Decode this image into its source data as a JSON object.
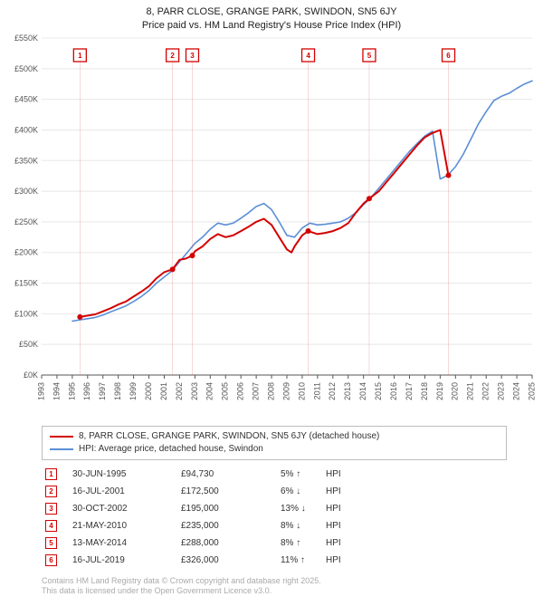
{
  "title": {
    "line1": "8, PARR CLOSE, GRANGE PARK, SWINDON, SN5 6JY",
    "line2": "Price paid vs. HM Land Registry's House Price Index (HPI)"
  },
  "chart": {
    "type": "line",
    "background_color": "#ffffff",
    "grid_color": "#e8e8e8",
    "axis_color": "#555555",
    "axis_font_size": 9,
    "x": {
      "min": 1993,
      "max": 2025,
      "tick_step": 1
    },
    "y": {
      "min": 0,
      "max": 550000,
      "tick_step": 50000,
      "tick_prefix": "£",
      "tick_suffix": "K",
      "tick_divisor": 1000
    },
    "series": [
      {
        "id": "price_paid",
        "label": "8, PARR CLOSE, GRANGE PARK, SWINDON, SN5 6JY (detached house)",
        "color": "#d40000",
        "line_width": 2,
        "points": [
          [
            1995.5,
            94730
          ],
          [
            1996,
            97000
          ],
          [
            1996.5,
            99000
          ],
          [
            1997,
            104000
          ],
          [
            1997.5,
            109000
          ],
          [
            1998,
            115000
          ],
          [
            1998.5,
            120000
          ],
          [
            1999,
            128000
          ],
          [
            1999.5,
            136000
          ],
          [
            2000,
            145000
          ],
          [
            2000.5,
            158000
          ],
          [
            2001,
            168000
          ],
          [
            2001.54,
            172500
          ],
          [
            2002,
            188000
          ],
          [
            2002.4,
            190000
          ],
          [
            2002.83,
            195000
          ],
          [
            2003,
            202000
          ],
          [
            2003.5,
            210000
          ],
          [
            2004,
            222000
          ],
          [
            2004.5,
            230000
          ],
          [
            2005,
            225000
          ],
          [
            2005.5,
            228000
          ],
          [
            2006,
            235000
          ],
          [
            2006.5,
            242000
          ],
          [
            2007,
            250000
          ],
          [
            2007.5,
            255000
          ],
          [
            2008,
            245000
          ],
          [
            2008.5,
            225000
          ],
          [
            2009,
            205000
          ],
          [
            2009.3,
            200000
          ],
          [
            2009.5,
            210000
          ],
          [
            2010,
            228000
          ],
          [
            2010.39,
            235000
          ],
          [
            2011,
            230000
          ],
          [
            2011.5,
            232000
          ],
          [
            2012,
            235000
          ],
          [
            2012.5,
            240000
          ],
          [
            2013,
            248000
          ],
          [
            2013.5,
            265000
          ],
          [
            2014,
            280000
          ],
          [
            2014.37,
            288000
          ],
          [
            2015,
            300000
          ],
          [
            2015.5,
            315000
          ],
          [
            2016,
            330000
          ],
          [
            2016.5,
            345000
          ],
          [
            2017,
            360000
          ],
          [
            2017.5,
            375000
          ],
          [
            2018,
            388000
          ],
          [
            2018.5,
            395000
          ],
          [
            2019,
            400000
          ],
          [
            2019.54,
            326000
          ]
        ]
      },
      {
        "id": "hpi",
        "label": "HPI: Average price, detached house, Swindon",
        "color": "#5b8fd6",
        "line_width": 1.6,
        "points": [
          [
            1995,
            88000
          ],
          [
            1995.5,
            90000
          ],
          [
            1996,
            92000
          ],
          [
            1996.5,
            94000
          ],
          [
            1997,
            98000
          ],
          [
            1997.5,
            103000
          ],
          [
            1998,
            108000
          ],
          [
            1998.5,
            113000
          ],
          [
            1999,
            120000
          ],
          [
            1999.5,
            128000
          ],
          [
            2000,
            138000
          ],
          [
            2000.5,
            150000
          ],
          [
            2001,
            160000
          ],
          [
            2001.5,
            170000
          ],
          [
            2002,
            185000
          ],
          [
            2002.5,
            200000
          ],
          [
            2003,
            215000
          ],
          [
            2003.5,
            225000
          ],
          [
            2004,
            238000
          ],
          [
            2004.5,
            248000
          ],
          [
            2005,
            245000
          ],
          [
            2005.5,
            248000
          ],
          [
            2006,
            256000
          ],
          [
            2006.5,
            265000
          ],
          [
            2007,
            275000
          ],
          [
            2007.5,
            280000
          ],
          [
            2008,
            270000
          ],
          [
            2008.5,
            250000
          ],
          [
            2009,
            228000
          ],
          [
            2009.5,
            225000
          ],
          [
            2010,
            240000
          ],
          [
            2010.5,
            248000
          ],
          [
            2011,
            245000
          ],
          [
            2011.5,
            246000
          ],
          [
            2012,
            248000
          ],
          [
            2012.5,
            250000
          ],
          [
            2013,
            256000
          ],
          [
            2013.5,
            265000
          ],
          [
            2014,
            278000
          ],
          [
            2014.5,
            290000
          ],
          [
            2015,
            305000
          ],
          [
            2015.5,
            320000
          ],
          [
            2016,
            335000
          ],
          [
            2016.5,
            350000
          ],
          [
            2017,
            365000
          ],
          [
            2017.5,
            378000
          ],
          [
            2018,
            390000
          ],
          [
            2018.5,
            398000
          ],
          [
            2019,
            320000
          ],
          [
            2019.5,
            326000
          ],
          [
            2020,
            340000
          ],
          [
            2020.5,
            360000
          ],
          [
            2021,
            385000
          ],
          [
            2021.5,
            410000
          ],
          [
            2022,
            430000
          ],
          [
            2022.5,
            448000
          ],
          [
            2023,
            455000
          ],
          [
            2023.5,
            460000
          ],
          [
            2024,
            468000
          ],
          [
            2024.5,
            475000
          ],
          [
            2025,
            480000
          ]
        ]
      }
    ],
    "markers": [
      {
        "n": 1,
        "x": 1995.5,
        "color": "#d40000"
      },
      {
        "n": 2,
        "x": 2001.54,
        "color": "#d40000"
      },
      {
        "n": 3,
        "x": 2002.83,
        "color": "#d40000"
      },
      {
        "n": 4,
        "x": 2010.39,
        "color": "#d40000"
      },
      {
        "n": 5,
        "x": 2014.37,
        "color": "#d40000"
      },
      {
        "n": 6,
        "x": 2019.54,
        "color": "#d40000"
      }
    ]
  },
  "legend": {
    "border_color": "#bdbdbd",
    "items": [
      {
        "color": "#d40000",
        "label": "8, PARR CLOSE, GRANGE PARK, SWINDON, SN5 6JY (detached house)"
      },
      {
        "color": "#5b8fd6",
        "label": "HPI: Average price, detached house, Swindon"
      }
    ]
  },
  "transactions": [
    {
      "n": 1,
      "date": "30-JUN-1995",
      "price": "£94,730",
      "pct": "5%",
      "arrow": "↑",
      "rel": "HPI"
    },
    {
      "n": 2,
      "date": "16-JUL-2001",
      "price": "£172,500",
      "pct": "6%",
      "arrow": "↓",
      "rel": "HPI"
    },
    {
      "n": 3,
      "date": "30-OCT-2002",
      "price": "£195,000",
      "pct": "13%",
      "arrow": "↓",
      "rel": "HPI"
    },
    {
      "n": 4,
      "date": "21-MAY-2010",
      "price": "£235,000",
      "pct": "8%",
      "arrow": "↓",
      "rel": "HPI"
    },
    {
      "n": 5,
      "date": "13-MAY-2014",
      "price": "£288,000",
      "pct": "8%",
      "arrow": "↑",
      "rel": "HPI"
    },
    {
      "n": 6,
      "date": "16-JUL-2019",
      "price": "£326,000",
      "pct": "11%",
      "arrow": "↑",
      "rel": "HPI"
    }
  ],
  "transaction_marker_color": "#d40000",
  "footer": {
    "line1": "Contains HM Land Registry data © Crown copyright and database right 2025.",
    "line2": "This data is licensed under the Open Government Licence v3.0."
  }
}
